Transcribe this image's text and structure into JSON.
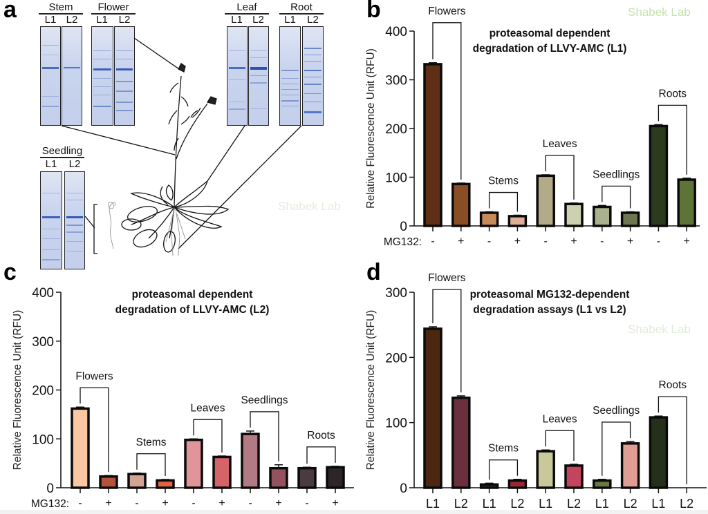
{
  "watermark": "Shabek Lab",
  "panel_a": {
    "letter": "a",
    "gels": [
      {
        "tissue": "Stem",
        "lanes": [
          "L1",
          "L2"
        ]
      },
      {
        "tissue": "Flower",
        "lanes": [
          "L1",
          "L2"
        ]
      },
      {
        "tissue": "Leaf",
        "lanes": [
          "L1",
          "L2"
        ]
      },
      {
        "tissue": "Root",
        "lanes": [
          "L1",
          "L2"
        ]
      },
      {
        "tissue": "Seedling",
        "lanes": [
          "L1",
          "L2"
        ]
      }
    ]
  },
  "chart_data": [
    {
      "panel": "b",
      "type": "bar",
      "title": [
        "proteasomal dependent",
        "degradation of LLVY-AMC (L1)"
      ],
      "ylabel": "Relative Fluorescence Unit (RFU)",
      "xlabel_prefix": "MG132:",
      "ylim": [
        0,
        400
      ],
      "yticks": [
        0,
        100,
        200,
        300,
        400
      ],
      "groups": [
        "Flowers",
        "Stems",
        "Leaves",
        "Seedlings",
        "Roots"
      ],
      "categories": [
        "-",
        "+",
        "-",
        "+",
        "-",
        "+",
        "-",
        "+",
        "-",
        "+"
      ],
      "values": [
        332,
        86,
        27,
        20,
        103,
        45,
        39,
        27,
        205,
        95
      ],
      "errors": [
        3,
        2,
        2,
        2,
        2,
        2,
        3,
        2,
        3,
        3
      ],
      "colors": [
        "#5e2f14",
        "#8a4e25",
        "#c98a5a",
        "#deae98",
        "#b3aa8a",
        "#cdd1b1",
        "#a9b18e",
        "#6e7650",
        "#2c3a1e",
        "#5e7436"
      ],
      "grid": false
    },
    {
      "panel": "c",
      "type": "bar",
      "title": [
        "proteasomal dependent",
        "degradation of LLVY-AMC (L2)"
      ],
      "ylabel": "Relative Fluorescence Unit (RFU)",
      "xlabel_prefix": "MG132:",
      "ylim": [
        0,
        400
      ],
      "yticks": [
        0,
        100,
        200,
        300,
        400
      ],
      "groups": [
        "Flowers",
        "Stems",
        "Leaves",
        "Seedlings",
        "Roots"
      ],
      "categories": [
        "-",
        "+",
        "-",
        "+",
        "-",
        "+",
        "-",
        "+",
        "-",
        "+"
      ],
      "values": [
        162,
        23,
        28,
        15,
        98,
        63,
        110,
        40,
        40,
        42
      ],
      "errors": [
        3,
        2,
        2,
        2,
        2,
        2,
        6,
        7,
        2,
        2
      ],
      "colors": [
        "#f9c7a2",
        "#b5523c",
        "#d3a493",
        "#e4643f",
        "#e0959a",
        "#d4636a",
        "#b17a84",
        "#93525d",
        "#4a3a42",
        "#2e2529"
      ],
      "grid": false
    },
    {
      "panel": "d",
      "type": "bar",
      "title": [
        "proteasomal MG132-dependent",
        "degradation assays (L1 vs L2)"
      ],
      "ylabel": "Relative Fluorescence Unit (RFU)",
      "xlabel_prefix": "",
      "ylim": [
        0,
        300
      ],
      "yticks": [
        0,
        100,
        200,
        300
      ],
      "groups": [
        "Flowers",
        "Stems",
        "Leaves",
        "Seedlings",
        "Roots"
      ],
      "categories": [
        "L1",
        "L2",
        "L1",
        "L2",
        "L1",
        "L2",
        "L1",
        "L2",
        "L1",
        "L2"
      ],
      "values": [
        244,
        138,
        5,
        11,
        56,
        34,
        11,
        68,
        108,
        0
      ],
      "errors": [
        3,
        3,
        2,
        2,
        2,
        2,
        2,
        3,
        2,
        0
      ],
      "colors": [
        "#4c2611",
        "#6b2f3d",
        "#3a2a22",
        "#9b2634",
        "#c8c89a",
        "#c2445e",
        "#6a7a3e",
        "#e09e92",
        "#25301a",
        "#ffffff"
      ],
      "grid": false
    }
  ],
  "panel_letters": {
    "b": "b",
    "c": "c",
    "d": "d"
  }
}
